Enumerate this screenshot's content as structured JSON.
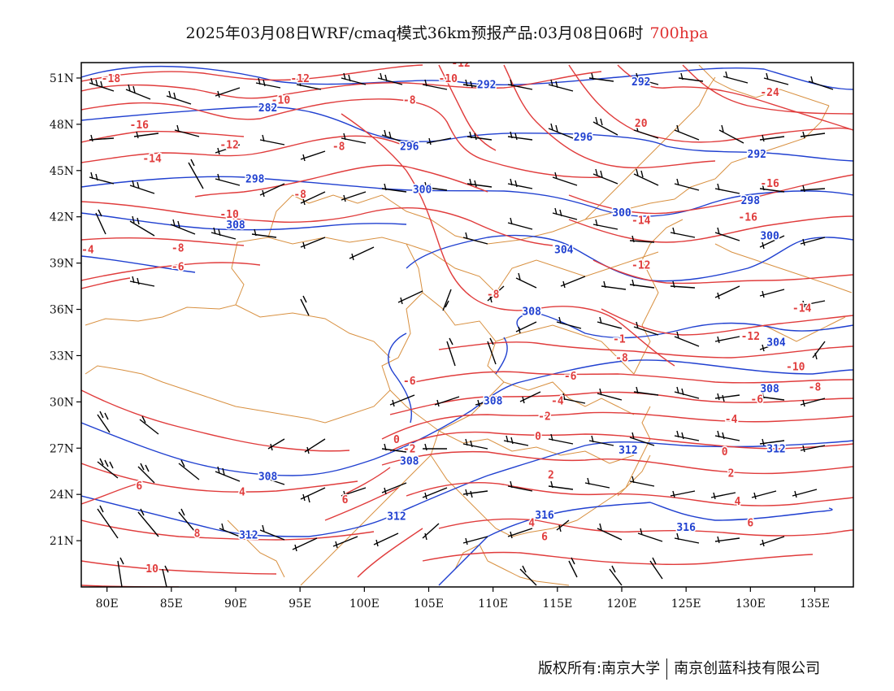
{
  "title": {
    "main": "2025年03月08日WRF/cmaq模式36km预报产品:03月08日06时",
    "level": "700hpa"
  },
  "colors": {
    "temperature": "#e03c3c",
    "height": "#2040d0",
    "border": "#d89040",
    "barb": "#000000",
    "level_text": "#e03030"
  },
  "axes": {
    "lat_labels": [
      "51N",
      "48N",
      "45N",
      "42N",
      "39N",
      "36N",
      "33N",
      "30N",
      "27N",
      "24N",
      "21N"
    ],
    "lat_values": [
      51,
      48,
      45,
      42,
      39,
      36,
      33,
      30,
      27,
      24,
      21
    ],
    "lon_labels": [
      "80E",
      "85E",
      "90E",
      "95E",
      "100E",
      "105E",
      "110E",
      "115E",
      "120E",
      "125E",
      "130E",
      "135E"
    ],
    "lon_values": [
      80,
      85,
      90,
      95,
      100,
      105,
      110,
      115,
      120,
      125,
      130,
      135
    ],
    "lon_range": [
      78,
      138
    ],
    "lat_range": [
      18,
      52
    ]
  },
  "temperature_labels": [
    {
      "text": "-18",
      "lon": 80.3,
      "lat": 51
    },
    {
      "text": "-12",
      "lon": 95,
      "lat": 51
    },
    {
      "text": "-12",
      "lon": 107.5,
      "lat": 52
    },
    {
      "text": "-10",
      "lon": 106.5,
      "lat": 51
    },
    {
      "text": "-10",
      "lon": 93.5,
      "lat": 49.6
    },
    {
      "text": "-8",
      "lon": 103.5,
      "lat": 49.6
    },
    {
      "text": "-16",
      "lon": 82.5,
      "lat": 48
    },
    {
      "text": "-14",
      "lon": 83.5,
      "lat": 45.8
    },
    {
      "text": "-12",
      "lon": 89.5,
      "lat": 46.7
    },
    {
      "text": "-8",
      "lon": 98,
      "lat": 46.6
    },
    {
      "text": "-8",
      "lon": 95,
      "lat": 43.5
    },
    {
      "text": "-10",
      "lon": 89.5,
      "lat": 42.2
    },
    {
      "text": "-4",
      "lon": 78.5,
      "lat": 39.9
    },
    {
      "text": "-8",
      "lon": 85.5,
      "lat": 40
    },
    {
      "text": "-6",
      "lon": 85.5,
      "lat": 38.8
    },
    {
      "text": "-8",
      "lon": 110,
      "lat": 37
    },
    {
      "text": "-6",
      "lon": 103.5,
      "lat": 31.4
    },
    {
      "text": "-1",
      "lon": 119.8,
      "lat": 34.1
    },
    {
      "text": "-8",
      "lon": 120,
      "lat": 32.9
    },
    {
      "text": "-6",
      "lon": 116,
      "lat": 31.7
    },
    {
      "text": "-4",
      "lon": 115,
      "lat": 30.1
    },
    {
      "text": "-2",
      "lon": 114,
      "lat": 29.1
    },
    {
      "text": "0",
      "lon": 113.5,
      "lat": 27.8
    },
    {
      "text": "0",
      "lon": 102.5,
      "lat": 27.6
    },
    {
      "text": "-2",
      "lon": 103.5,
      "lat": 27
    },
    {
      "text": "2",
      "lon": 114.5,
      "lat": 25.3
    },
    {
      "text": "4",
      "lon": 113,
      "lat": 22.2
    },
    {
      "text": "6",
      "lon": 114,
      "lat": 21.3
    },
    {
      "text": "20",
      "lon": 121.5,
      "lat": 48.1
    },
    {
      "text": "-24",
      "lon": 131.5,
      "lat": 50.1
    },
    {
      "text": "-16",
      "lon": 131.5,
      "lat": 44.2
    },
    {
      "text": "-16",
      "lon": 129.8,
      "lat": 42
    },
    {
      "text": "-14",
      "lon": 121.5,
      "lat": 41.8
    },
    {
      "text": "-12",
      "lon": 121.5,
      "lat": 38.9
    },
    {
      "text": "-14",
      "lon": 134,
      "lat": 36.1
    },
    {
      "text": "-12",
      "lon": 130,
      "lat": 34.3
    },
    {
      "text": "-10",
      "lon": 133.5,
      "lat": 32.3
    },
    {
      "text": "-8",
      "lon": 135,
      "lat": 31
    },
    {
      "text": "-6",
      "lon": 130.5,
      "lat": 30.2
    },
    {
      "text": "-4",
      "lon": 128.5,
      "lat": 28.9
    },
    {
      "text": "0",
      "lon": 128,
      "lat": 26.8
    },
    {
      "text": "2",
      "lon": 128.5,
      "lat": 25.4
    },
    {
      "text": "4",
      "lon": 129,
      "lat": 23.6
    },
    {
      "text": "6",
      "lon": 130,
      "lat": 22.2
    },
    {
      "text": "6",
      "lon": 82.5,
      "lat": 24.6
    },
    {
      "text": "4",
      "lon": 90.5,
      "lat": 24.2
    },
    {
      "text": "6",
      "lon": 98.5,
      "lat": 23.7
    },
    {
      "text": "8",
      "lon": 87,
      "lat": 21.5
    },
    {
      "text": "10",
      "lon": 83.5,
      "lat": 19.2
    }
  ],
  "height_labels": [
    {
      "text": "292",
      "lon": 109.5,
      "lat": 50.6
    },
    {
      "text": "292",
      "lon": 121.5,
      "lat": 50.8
    },
    {
      "text": "282",
      "lon": 92.5,
      "lat": 49.1
    },
    {
      "text": "296",
      "lon": 103.5,
      "lat": 46.6
    },
    {
      "text": "296",
      "lon": 117,
      "lat": 47.2
    },
    {
      "text": "292",
      "lon": 130.5,
      "lat": 46.1
    },
    {
      "text": "298",
      "lon": 91.5,
      "lat": 44.5
    },
    {
      "text": "300",
      "lon": 104.5,
      "lat": 43.8
    },
    {
      "text": "298",
      "lon": 130,
      "lat": 43.1
    },
    {
      "text": "300",
      "lon": 120,
      "lat": 42.3
    },
    {
      "text": "308",
      "lon": 90,
      "lat": 41.5
    },
    {
      "text": "304",
      "lon": 115.5,
      "lat": 39.9
    },
    {
      "text": "300",
      "lon": 131.5,
      "lat": 40.8
    },
    {
      "text": "308",
      "lon": 113,
      "lat": 35.9
    },
    {
      "text": "304",
      "lon": 132,
      "lat": 33.9
    },
    {
      "text": "308",
      "lon": 131.5,
      "lat": 30.9
    },
    {
      "text": "308",
      "lon": 110,
      "lat": 30.1
    },
    {
      "text": "312",
      "lon": 120.5,
      "lat": 26.9
    },
    {
      "text": "312",
      "lon": 132,
      "lat": 27
    },
    {
      "text": "308",
      "lon": 103.5,
      "lat": 26.2
    },
    {
      "text": "308",
      "lon": 92.5,
      "lat": 25.2
    },
    {
      "text": "312",
      "lon": 102.5,
      "lat": 22.6
    },
    {
      "text": "316",
      "lon": 114,
      "lat": 22.7
    },
    {
      "text": "316",
      "lon": 125,
      "lat": 21.9
    },
    {
      "text": "312",
      "lon": 91,
      "lat": 21.4
    }
  ],
  "footer": {
    "left": "版权所有:南京大学",
    "right": "南京创蓝科技有限公司"
  }
}
